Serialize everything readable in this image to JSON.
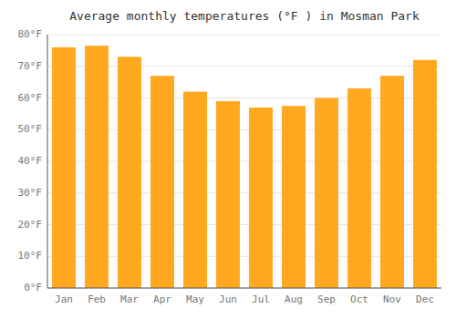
{
  "chart_data": {
    "type": "bar",
    "title": "Average monthly temperatures (°F ) in Mosman Park",
    "categories": [
      "Jan",
      "Feb",
      "Mar",
      "Apr",
      "May",
      "Jun",
      "Jul",
      "Aug",
      "Sep",
      "Oct",
      "Nov",
      "Dec"
    ],
    "values": [
      76,
      76.5,
      73,
      67,
      62,
      59,
      57,
      57.5,
      60,
      63,
      67,
      72
    ],
    "color": "#FFA820",
    "ylim": [
      0,
      80
    ],
    "yticks": [
      {
        "value": 0,
        "label": "0°F"
      },
      {
        "value": 10,
        "label": "10°F"
      },
      {
        "value": 20,
        "label": "20°F"
      },
      {
        "value": 30,
        "label": "30°F"
      },
      {
        "value": 40,
        "label": "40°F"
      },
      {
        "value": 50,
        "label": "50°F"
      },
      {
        "value": 60,
        "label": "60°F"
      },
      {
        "value": 70,
        "label": "70°F"
      },
      {
        "value": 80,
        "label": "80°F"
      }
    ],
    "grid": true
  }
}
